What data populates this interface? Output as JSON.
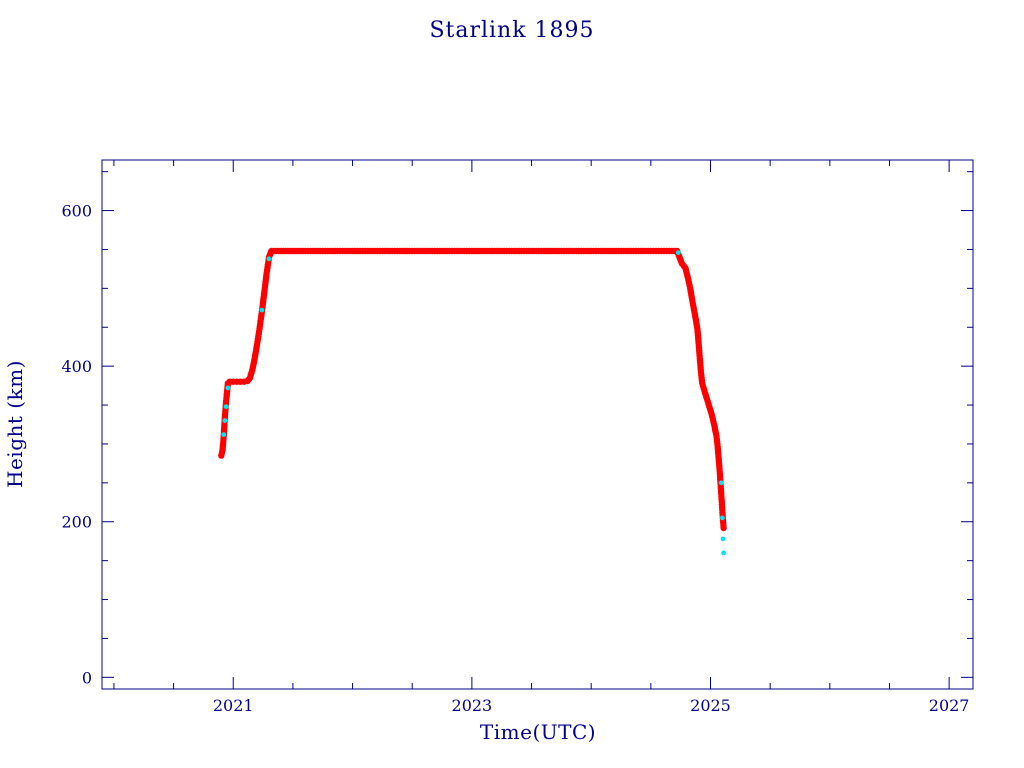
{
  "chart_data": {
    "type": "scatter",
    "title": "Starlink 1895",
    "xlabel": "Time(UTC)",
    "ylabel": "Height (km)",
    "xlim": [
      2019.9,
      2027.2
    ],
    "ylim": [
      -15,
      665
    ],
    "x_ticks": [
      2021,
      2023,
      2025,
      2027
    ],
    "y_ticks": [
      0,
      200,
      400,
      600
    ],
    "x_minor_step": 0.5,
    "y_minor_step": 50,
    "grid": false,
    "colors": {
      "primary": "#ff0000",
      "secondary": "#00e5ee",
      "axis": "#00008b"
    },
    "series": [
      {
        "color": "#ff0000",
        "points": [
          [
            2020.9,
            285
          ],
          [
            2020.91,
            292
          ],
          [
            2020.915,
            300
          ],
          [
            2020.92,
            310
          ],
          [
            2020.925,
            322
          ],
          [
            2020.93,
            335
          ],
          [
            2020.935,
            345
          ],
          [
            2020.94,
            355
          ],
          [
            2020.945,
            362
          ],
          [
            2020.95,
            370
          ],
          [
            2020.955,
            378
          ],
          [
            2020.97,
            380
          ],
          [
            2021.0,
            380
          ],
          [
            2021.03,
            380
          ],
          [
            2021.06,
            380
          ],
          [
            2021.09,
            380
          ],
          [
            2021.12,
            381
          ],
          [
            2021.14,
            385
          ],
          [
            2021.16,
            395
          ],
          [
            2021.18,
            410
          ],
          [
            2021.2,
            428
          ],
          [
            2021.22,
            448
          ],
          [
            2021.24,
            470
          ],
          [
            2021.26,
            495
          ],
          [
            2021.28,
            520
          ],
          [
            2021.3,
            540
          ],
          [
            2021.32,
            548
          ],
          [
            2021.5,
            548
          ],
          [
            2022.0,
            548
          ],
          [
            2022.5,
            548
          ],
          [
            2023.0,
            548
          ],
          [
            2023.5,
            548
          ],
          [
            2024.0,
            548
          ],
          [
            2024.5,
            548
          ],
          [
            2024.72,
            548
          ],
          [
            2024.74,
            540
          ],
          [
            2024.76,
            532
          ],
          [
            2024.79,
            526
          ],
          [
            2024.81,
            514
          ],
          [
            2024.83,
            500
          ],
          [
            2024.85,
            482
          ],
          [
            2024.87,
            466
          ],
          [
            2024.89,
            448
          ],
          [
            2024.9,
            430
          ],
          [
            2024.91,
            410
          ],
          [
            2024.92,
            392
          ],
          [
            2024.93,
            378
          ],
          [
            2024.95,
            368
          ],
          [
            2024.97,
            358
          ],
          [
            2024.99,
            348
          ],
          [
            2025.01,
            338
          ],
          [
            2025.03,
            325
          ],
          [
            2025.05,
            310
          ],
          [
            2025.06,
            296
          ],
          [
            2025.07,
            278
          ],
          [
            2025.08,
            258
          ],
          [
            2025.09,
            236
          ],
          [
            2025.1,
            212
          ],
          [
            2025.11,
            192
          ]
        ]
      },
      {
        "color": "#00e5ee",
        "points": [
          [
            2020.92,
            312
          ],
          [
            2020.93,
            330
          ],
          [
            2020.94,
            348
          ],
          [
            2020.955,
            372
          ],
          [
            2021.24,
            472
          ],
          [
            2021.3,
            538
          ],
          [
            2024.73,
            546
          ],
          [
            2025.09,
            250
          ],
          [
            2025.1,
            205
          ],
          [
            2025.105,
            178
          ],
          [
            2025.11,
            160
          ]
        ]
      }
    ]
  }
}
